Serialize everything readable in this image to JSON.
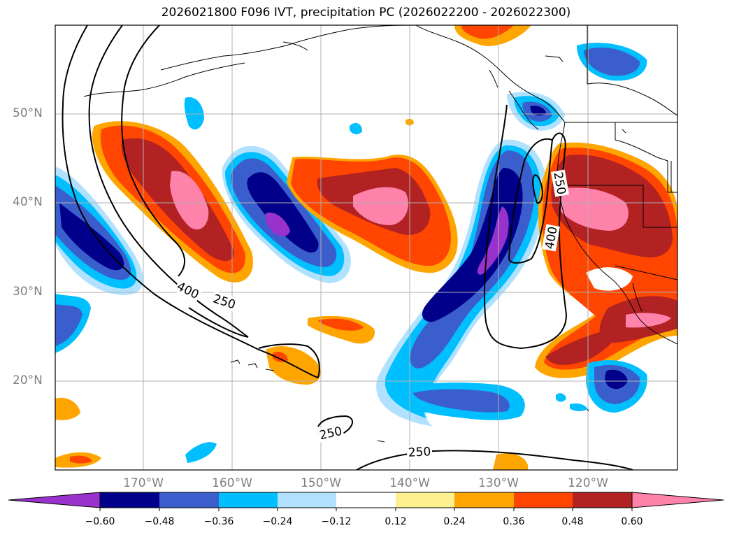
{
  "title": "2026021800 F096 IVT, precipitation PC (2026022200 - 2026022300)",
  "map": {
    "lat_labels": [
      "50°N",
      "40°N",
      "30°N",
      "20°N"
    ],
    "lon_labels": [
      "170°W",
      "160°W",
      "150°W",
      "140°W",
      "130°W",
      "120°W"
    ],
    "contour_labels": [
      "400",
      "250",
      "250",
      "400",
      "250",
      "250"
    ]
  },
  "colorbar": {
    "ticks": [
      "−0.60",
      "−0.48",
      "−0.36",
      "−0.24",
      "−0.12",
      "0.12",
      "0.24",
      "0.36",
      "0.48",
      "0.60"
    ],
    "colors": [
      "#9932cc",
      "#00008b",
      "#3a5fcd",
      "#00bfff",
      "#b0e2ff",
      "#ffffff",
      "#fff08f",
      "#ffa500",
      "#ff4500",
      "#b22222",
      "#ff82ab"
    ]
  }
}
